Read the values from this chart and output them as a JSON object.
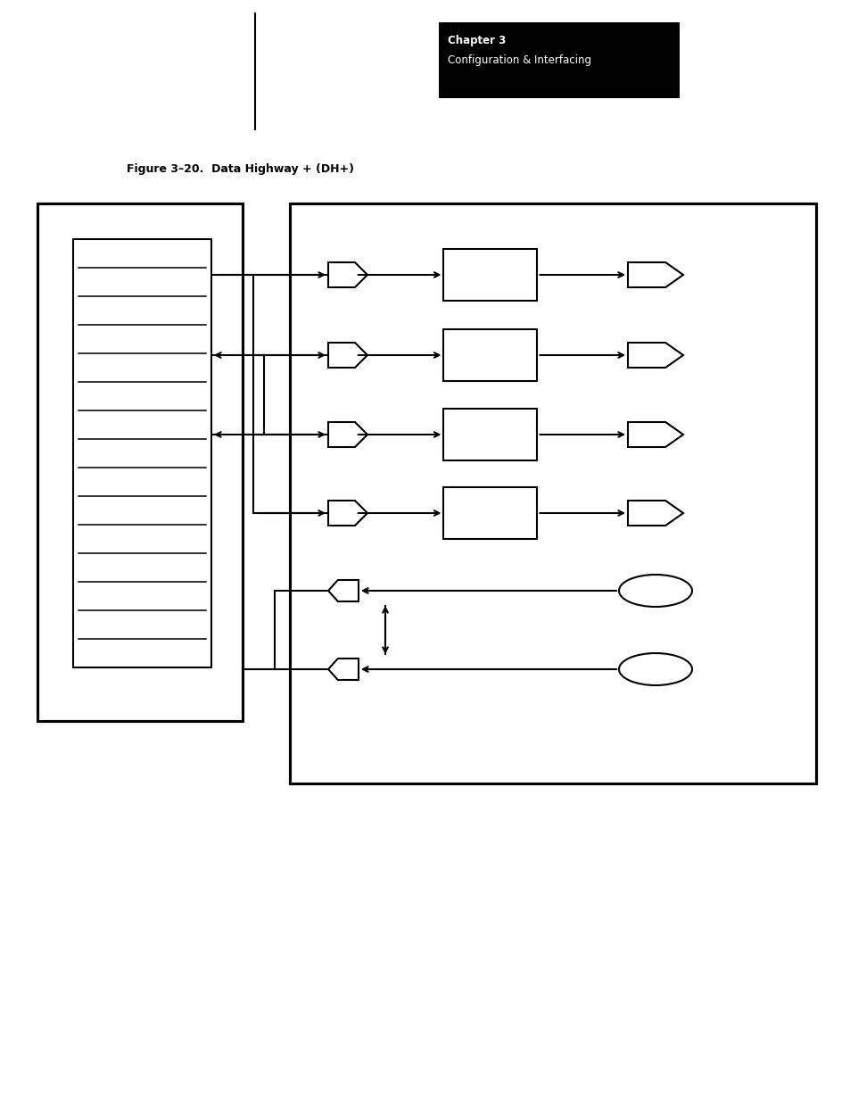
{
  "title": "Figure 3–20.  Data Highway + (DH+)",
  "chapter_title": "Chapter 3",
  "chapter_subtitle": "Configuration & Interfacing",
  "bg_color": "#ffffff",
  "fg_color": "#000000",
  "header_bg": "#000000",
  "header_fg": "#ffffff",
  "fig_width": 9.54,
  "fig_height": 12.35,
  "dpi": 100
}
